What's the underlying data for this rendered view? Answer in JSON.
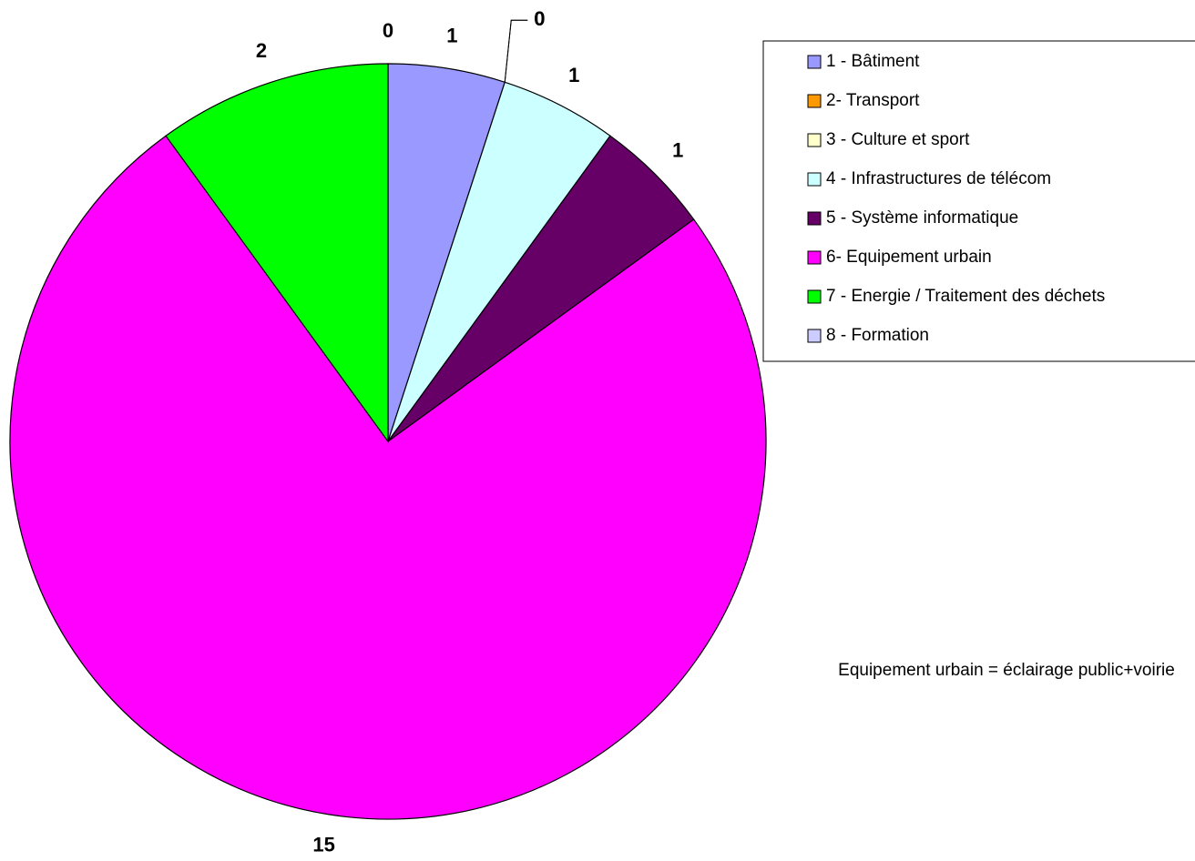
{
  "chart_data": {
    "type": "pie",
    "categories": [
      "1 - Bâtiment",
      "2- Transport",
      "3 - Culture et sport",
      "4 - Infrastructures de télécom",
      "5 - Système informatique",
      "6- Equipement urbain",
      "7 - Energie / Traitement des déchets",
      "8 - Formation"
    ],
    "values": [
      1,
      0,
      0,
      1,
      1,
      15,
      2,
      0
    ],
    "colors": [
      "#9999ff",
      "#ff9900",
      "#ffffcc",
      "#ccffff",
      "#660066",
      "#ff00ff",
      "#00ff00",
      "#ccccff"
    ],
    "legend": "right",
    "annotation": "Equipement urbain = éclairage public+voirie"
  }
}
